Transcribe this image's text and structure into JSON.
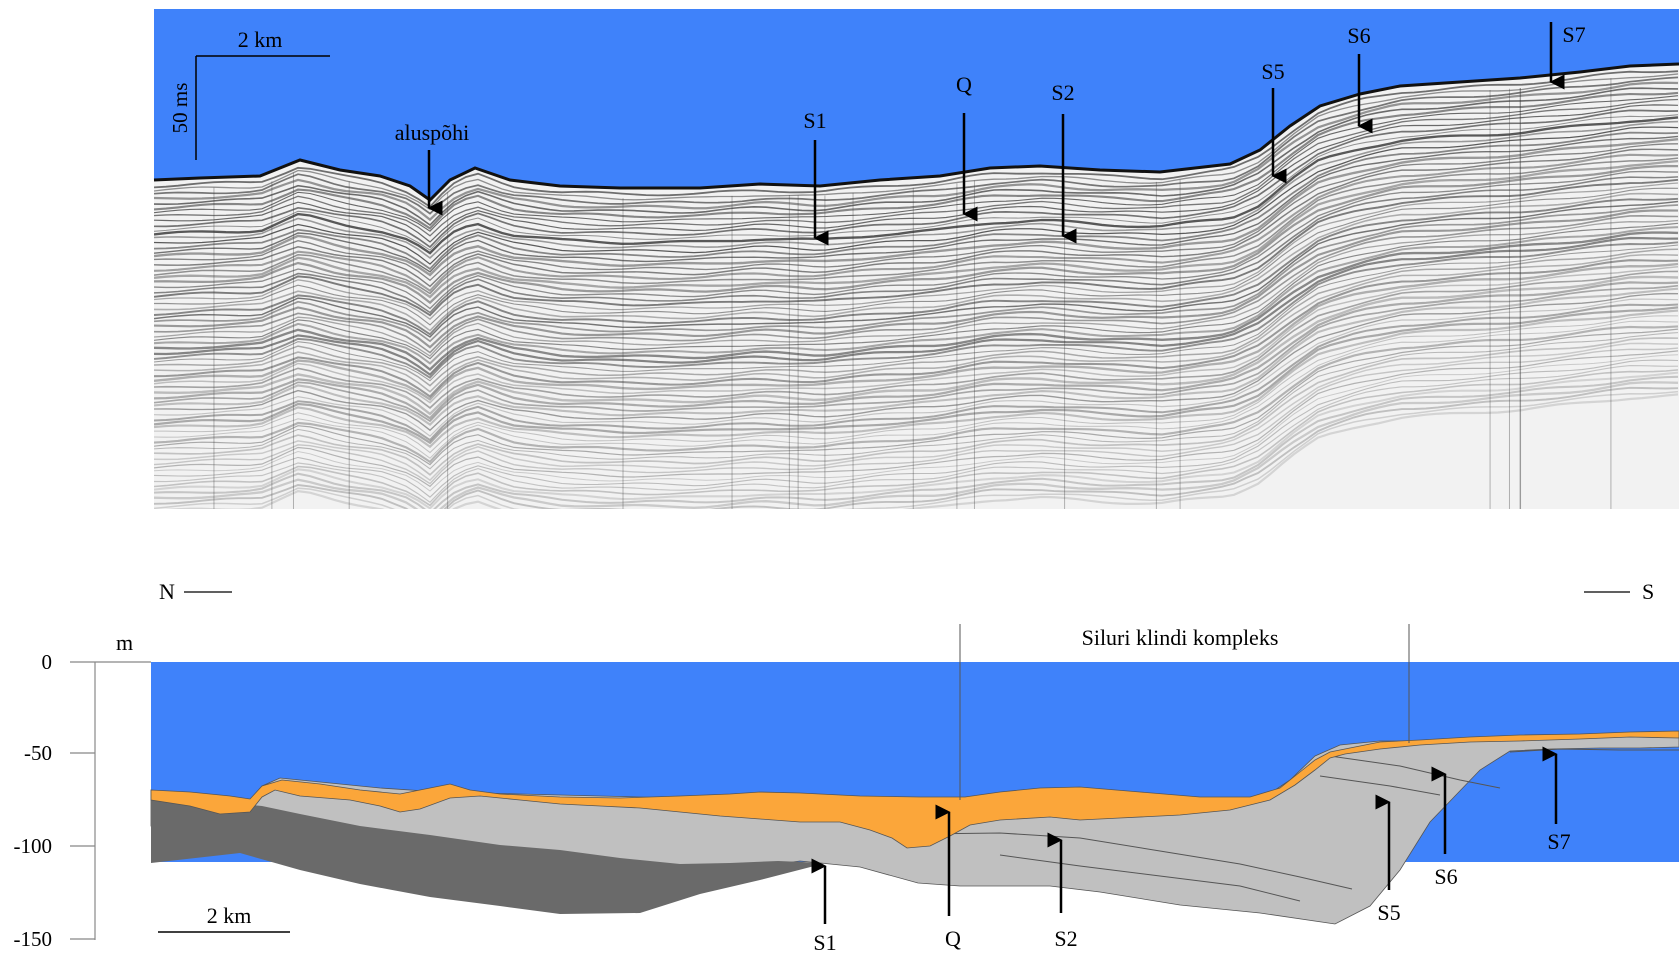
{
  "seismic_panel": {
    "scale_bar_label": "2 km",
    "time_scale_label": "50 ms",
    "annotations": [
      {
        "id": "aluspohi",
        "label": "aluspõhi"
      },
      {
        "id": "S1",
        "label": "S1"
      },
      {
        "id": "Q",
        "label": "Q"
      },
      {
        "id": "S2",
        "label": "S2"
      },
      {
        "id": "S5",
        "label": "S5"
      },
      {
        "id": "S6",
        "label": "S6"
      },
      {
        "id": "S7",
        "label": "S7"
      }
    ]
  },
  "section_panel": {
    "north_label": "N",
    "south_label": "S",
    "unit_label": "m",
    "complex_label": "Siluri klindi kompleks",
    "scale_bar_label": "2 km",
    "depth_ticks": [
      "0",
      "-50",
      "-100",
      "-150"
    ],
    "annotations": [
      {
        "id": "S1",
        "label": "S1"
      },
      {
        "id": "Q",
        "label": "Q"
      },
      {
        "id": "S2",
        "label": "S2"
      },
      {
        "id": "S5",
        "label": "S5"
      },
      {
        "id": "S6",
        "label": "S6"
      },
      {
        "id": "S7",
        "label": "S7"
      }
    ]
  },
  "colors": {
    "water": "#3f82fa",
    "quaternary": "#fba63a",
    "silurian": "#c0c0c0",
    "basement": "#6a6a6a",
    "seismic_bg": "#f2f2f2"
  }
}
